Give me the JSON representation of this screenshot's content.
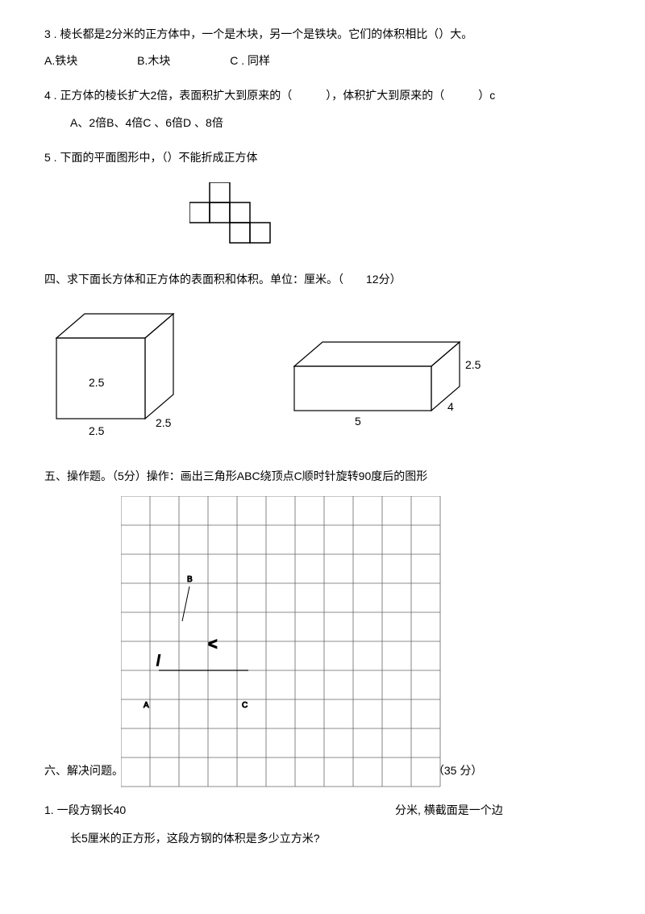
{
  "q3": {
    "text": "3 . 棱长都是2分米的正方体中，一个是木块，另一个是铁块。它们的体积相比（）大。",
    "optA": "A.铁块",
    "optB": "B.木块",
    "optC": "C . 同样"
  },
  "q4": {
    "text": "4 . 正方体的棱长扩大2倍，表面积扩大到原来的（　　　），体积扩大到原来的（　　　）c",
    "options": "A、2倍B、4倍C 、6倍D 、8倍"
  },
  "q5": {
    "text": "5 . 下面的平面图形中，（）不能折成正方体"
  },
  "section4": {
    "title": "四、求下面长方体和正方体的表面积和体积。单位：厘米。（　　12分）"
  },
  "cube": {
    "label1": "2.5",
    "label2": "2.5",
    "label3": "2.5"
  },
  "cuboid": {
    "label1": "5",
    "label2": "4",
    "label3": "2.5"
  },
  "section5": {
    "title": "五、操作题。（5分）操作：画出三角形ABC绕顶点C顺时针旋转90度后的图形"
  },
  "grid": {
    "labelA": "A",
    "labelB": "B",
    "labelC": "C"
  },
  "section6": {
    "title": "六、解决问题。",
    "score": "（35 分）"
  },
  "q6_1": {
    "line1a": "1. 一段方钢长40",
    "line1b": "分米, 横截面是一个边",
    "line2": "长5厘米的正方形，这段方钢的体积是多少立方米?"
  },
  "netSvg": {
    "cellSize": 25,
    "stroke": "#000000",
    "strokeWidth": 1.5
  },
  "cubeSvg": {
    "stroke": "#000000",
    "fill": "none",
    "strokeWidth": 1.2,
    "font": "14px"
  },
  "gridSvg": {
    "cols": 11,
    "rows": 10,
    "cellSize": 36,
    "stroke": "#666666",
    "strokeWidth": 0.8,
    "labelFont": "10px"
  }
}
